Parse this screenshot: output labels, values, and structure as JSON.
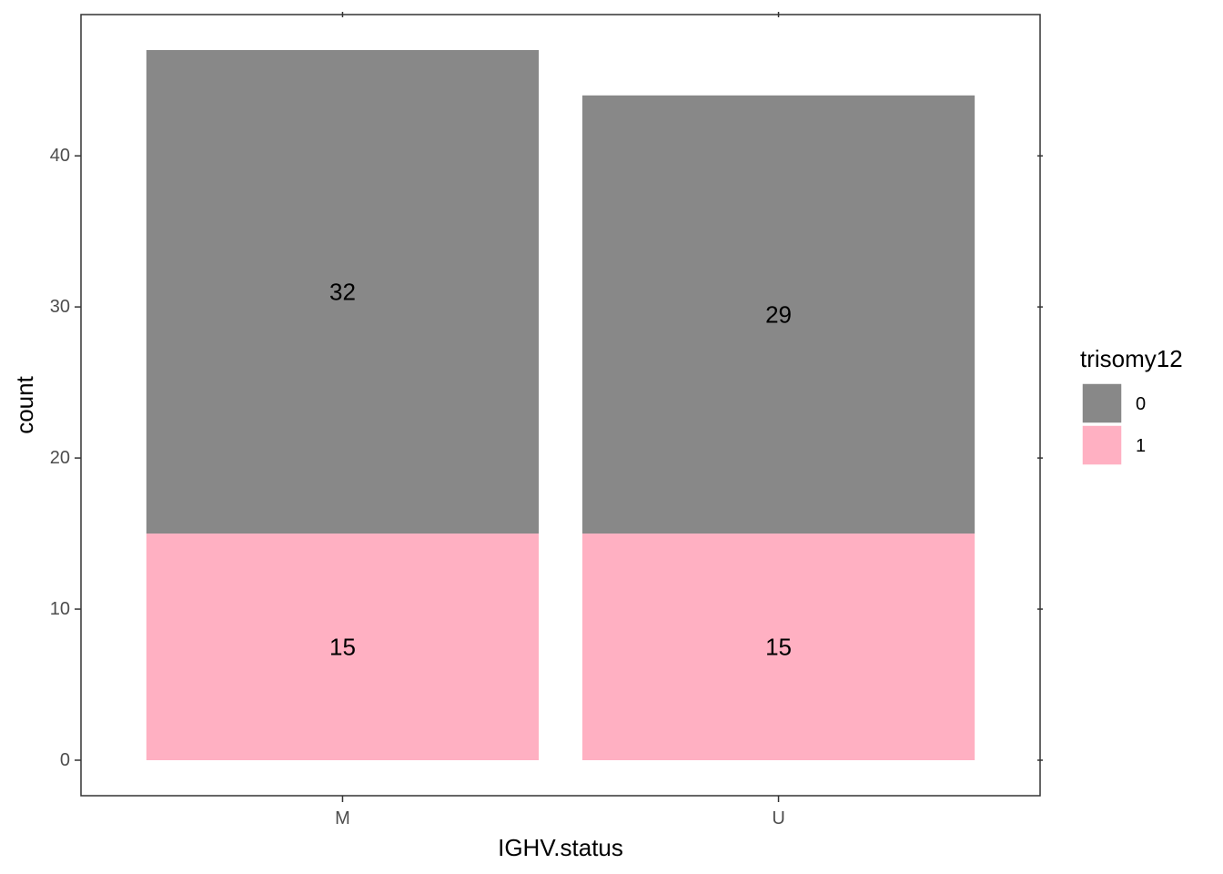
{
  "chart_data": {
    "type": "bar",
    "stacked": true,
    "categories": [
      "M",
      "U"
    ],
    "series": [
      {
        "name": "0",
        "values": [
          32,
          29
        ],
        "color": "#888888"
      },
      {
        "name": "1",
        "values": [
          15,
          15
        ],
        "color": "#FFB0C2"
      }
    ],
    "xlabel": "IGHV.status",
    "ylabel": "count",
    "ylim": [
      -2.35,
      49.35
    ],
    "yticks": [
      0,
      10,
      20,
      30,
      40
    ],
    "legend": {
      "title": "trisomy12",
      "position": "right"
    },
    "grid": false
  }
}
